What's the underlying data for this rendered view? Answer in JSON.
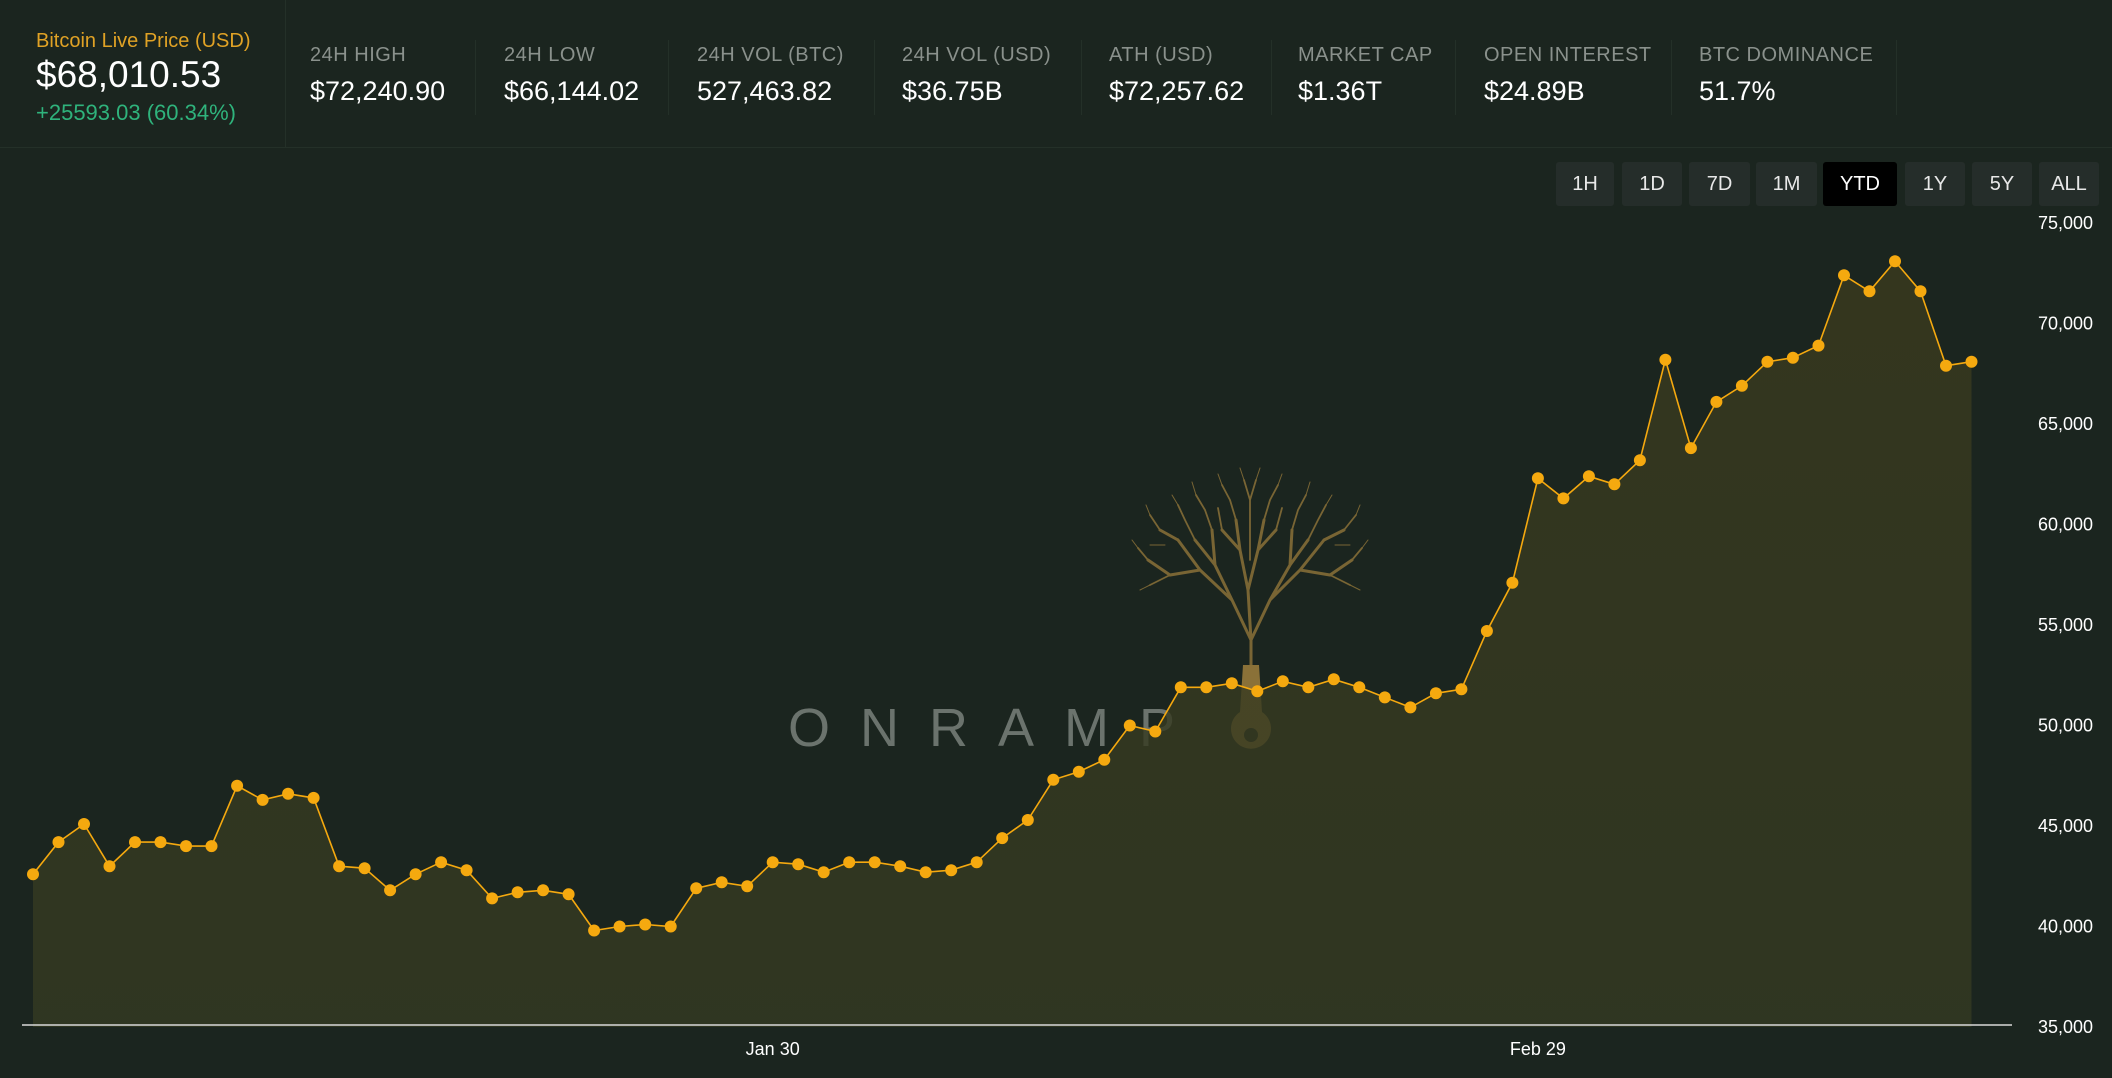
{
  "header": {
    "main": {
      "label": "Bitcoin Live Price (USD)",
      "price": "$68,010.53",
      "change": "+25593.03 (60.34%)"
    },
    "stats": [
      {
        "label": "24H HIGH",
        "value": "$72,240.90"
      },
      {
        "label": "24H LOW",
        "value": "$66,144.02"
      },
      {
        "label": "24H VOL (BTC)",
        "value": "527,463.82"
      },
      {
        "label": "24H VOL (USD)",
        "value": "$36.75B"
      },
      {
        "label": "ATH (USD)",
        "value": "$72,257.62"
      },
      {
        "label": "MARKET CAP",
        "value": "$1.36T"
      },
      {
        "label": "OPEN INTEREST",
        "value": "$24.89B"
      },
      {
        "label": "BTC DOMINANCE",
        "value": "51.7%"
      }
    ]
  },
  "range_tabs": {
    "items": [
      "1H",
      "1D",
      "7D",
      "1M",
      "YTD",
      "1Y",
      "5Y",
      "ALL"
    ],
    "active": "YTD"
  },
  "watermark": {
    "text": "ONRAMP"
  },
  "colors": {
    "background": "#1b251f",
    "line": "#f5a90f",
    "area_fill": "#3a3a1e",
    "positive": "#2fb37c",
    "accent_label": "#e0a225",
    "watermark_tree": "#8a7138"
  },
  "chart_data": {
    "type": "area",
    "title": "",
    "xlabel": "",
    "ylabel": "",
    "ylim": [
      35000,
      75000
    ],
    "yticks": [
      35000,
      40000,
      45000,
      50000,
      55000,
      60000,
      65000,
      70000,
      75000
    ],
    "ytick_labels": [
      "35,000",
      "40,000",
      "45,000",
      "50,000",
      "55,000",
      "60,000",
      "65,000",
      "70,000",
      "75,000"
    ],
    "xlim": [
      "2024-01-01",
      "2024-03-18"
    ],
    "xtick_labels": [
      {
        "date": "2024-01-30",
        "label": "Jan 30"
      },
      {
        "date": "2024-02-29",
        "label": "Feb 29"
      }
    ],
    "grid": false,
    "series": [
      {
        "x": [
          "2024-01-01",
          "2024-01-02",
          "2024-01-03",
          "2024-01-04",
          "2024-01-05",
          "2024-01-06",
          "2024-01-07",
          "2024-01-08",
          "2024-01-09",
          "2024-01-10",
          "2024-01-11",
          "2024-01-12",
          "2024-01-13",
          "2024-01-14",
          "2024-01-15",
          "2024-01-16",
          "2024-01-17",
          "2024-01-18",
          "2024-01-19",
          "2024-01-20",
          "2024-01-21",
          "2024-01-22",
          "2024-01-23",
          "2024-01-24",
          "2024-01-25",
          "2024-01-26",
          "2024-01-27",
          "2024-01-28",
          "2024-01-29",
          "2024-01-30",
          "2024-01-31",
          "2024-02-01",
          "2024-02-02",
          "2024-02-03",
          "2024-02-04",
          "2024-02-05",
          "2024-02-06",
          "2024-02-07",
          "2024-02-08",
          "2024-02-09",
          "2024-02-10",
          "2024-02-11",
          "2024-02-12",
          "2024-02-13",
          "2024-02-14",
          "2024-02-15",
          "2024-02-16",
          "2024-02-17",
          "2024-02-18",
          "2024-02-19",
          "2024-02-20",
          "2024-02-21",
          "2024-02-22",
          "2024-02-23",
          "2024-02-24",
          "2024-02-25",
          "2024-02-26",
          "2024-02-27",
          "2024-02-28",
          "2024-02-29",
          "2024-03-01",
          "2024-03-02",
          "2024-03-03",
          "2024-03-04",
          "2024-03-05",
          "2024-03-06",
          "2024-03-07",
          "2024-03-08",
          "2024-03-09",
          "2024-03-10",
          "2024-03-11",
          "2024-03-12",
          "2024-03-13",
          "2024-03-14",
          "2024-03-15",
          "2024-03-16",
          "2024-03-17"
        ],
        "y": [
          42600,
          44200,
          45100,
          43000,
          44200,
          44200,
          44000,
          44000,
          47000,
          46300,
          46600,
          46400,
          43000,
          42900,
          41800,
          42600,
          43200,
          42800,
          41400,
          41700,
          41800,
          41600,
          39800,
          40000,
          40100,
          40000,
          41900,
          42200,
          42000,
          43200,
          43100,
          42700,
          43200,
          43200,
          43000,
          42700,
          42800,
          43200,
          44400,
          45300,
          47300,
          47700,
          48300,
          50000,
          49700,
          51900,
          51900,
          52100,
          51700,
          52200,
          51900,
          52300,
          51900,
          51400,
          50900,
          51600,
          51800,
          54700,
          57100,
          62300,
          61300,
          62400,
          62000,
          63200,
          68200,
          63800,
          66100,
          66900,
          68100,
          68300,
          68900,
          72400,
          71600,
          73100,
          71600,
          67900,
          68100
        ]
      }
    ]
  }
}
